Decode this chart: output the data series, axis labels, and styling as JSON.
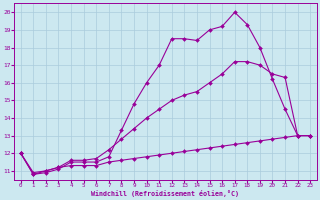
{
  "xlabel": "Windchill (Refroidissement éolien,°C)",
  "xlim": [
    -0.5,
    23.5
  ],
  "ylim": [
    10.5,
    20.5
  ],
  "xticks": [
    0,
    1,
    2,
    3,
    4,
    5,
    6,
    7,
    8,
    9,
    10,
    11,
    12,
    13,
    14,
    15,
    16,
    17,
    18,
    19,
    20,
    21,
    22,
    23
  ],
  "yticks": [
    11,
    12,
    13,
    14,
    15,
    16,
    17,
    18,
    19,
    20
  ],
  "line_color": "#990099",
  "background_color": "#cce8f0",
  "grid_color": "#aaccdd",
  "line1_x": [
    0,
    1,
    2,
    3,
    4,
    5,
    6,
    7,
    8,
    9,
    10,
    11,
    12,
    13,
    14,
    15,
    16,
    17,
    18,
    19,
    20,
    21,
    22,
    23
  ],
  "line1_y": [
    12.0,
    10.8,
    10.9,
    11.1,
    11.5,
    11.5,
    11.5,
    11.8,
    13.3,
    14.8,
    16.0,
    17.0,
    18.5,
    18.5,
    18.4,
    19.0,
    19.2,
    20.0,
    19.3,
    18.0,
    16.2,
    14.5,
    13.0,
    13.0
  ],
  "line2_x": [
    0,
    1,
    2,
    3,
    4,
    5,
    6,
    7,
    8,
    9,
    10,
    11,
    12,
    13,
    14,
    15,
    16,
    17,
    18,
    19,
    20,
    21,
    22,
    23
  ],
  "line2_y": [
    12.0,
    10.8,
    11.0,
    11.2,
    11.6,
    11.6,
    11.7,
    12.2,
    12.8,
    13.4,
    14.0,
    14.5,
    15.0,
    15.3,
    15.5,
    16.0,
    16.5,
    17.2,
    17.2,
    17.0,
    16.5,
    16.3,
    13.0,
    13.0
  ],
  "line3_x": [
    0,
    1,
    2,
    3,
    4,
    5,
    6,
    7,
    8,
    9,
    10,
    11,
    12,
    13,
    14,
    15,
    16,
    17,
    18,
    19,
    20,
    21,
    22,
    23
  ],
  "line3_y": [
    12.0,
    10.9,
    11.0,
    11.2,
    11.3,
    11.3,
    11.3,
    11.5,
    11.6,
    11.7,
    11.8,
    11.9,
    12.0,
    12.1,
    12.2,
    12.3,
    12.4,
    12.5,
    12.6,
    12.7,
    12.8,
    12.9,
    13.0,
    13.0
  ]
}
